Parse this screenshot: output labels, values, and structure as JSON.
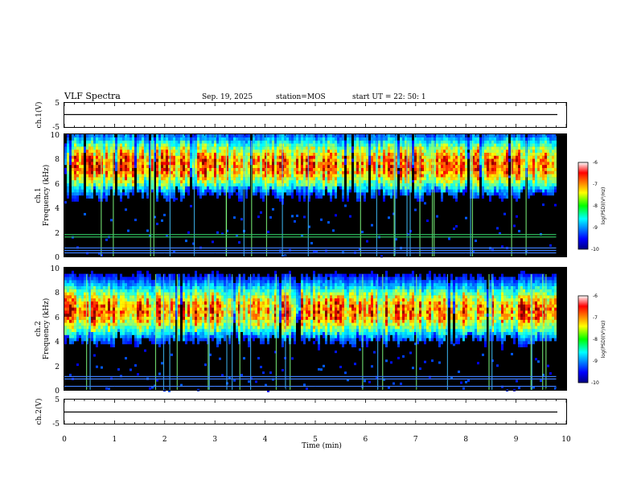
{
  "header": {
    "title": "VLF Spectra",
    "date": "Sep. 19, 2025",
    "station": "station=MOS",
    "start": "start  UT =   22: 50: 1"
  },
  "chart_data": [
    {
      "type": "line",
      "name": "ch1-waveform",
      "ylabel": "ch.1(V)",
      "ylim": [
        -5,
        5
      ],
      "yticks": [
        "5",
        "-5"
      ],
      "xlim": [
        0,
        10
      ],
      "series": [
        {
          "name": "ch.1",
          "x": [
            0,
            9.8
          ],
          "y": [
            0,
            0
          ]
        }
      ]
    },
    {
      "type": "heatmap",
      "name": "ch1-spectrogram",
      "ylabel_top": "ch.1",
      "ylabel": "Frequency (kHz)",
      "ylim": [
        0,
        10
      ],
      "yticks": [
        "0",
        "2",
        "4",
        "6",
        "8",
        "10"
      ],
      "xlim": [
        0,
        10
      ],
      "data_xmax": 9.8,
      "colorbar": {
        "label": "log(PSD)(V²/Hz)",
        "range": [
          -10,
          -6
        ],
        "ticks": [
          "-6",
          "-7",
          "-8",
          "-9",
          "-10"
        ]
      },
      "band": {
        "center_khz": 7.5,
        "lower_edge_khz": 5.0
      }
    },
    {
      "type": "heatmap",
      "name": "ch2-spectrogram",
      "ylabel_top": "ch.2",
      "ylabel": "Frequency (kHz)",
      "ylim": [
        0,
        10
      ],
      "yticks": [
        "0",
        "2",
        "4",
        "6",
        "8",
        "10"
      ],
      "xlim": [
        0,
        10
      ],
      "data_xmax": 9.8,
      "colorbar": {
        "label": "log(PSD)(V²/Hz)",
        "range": [
          -10,
          -6
        ],
        "ticks": [
          "-6",
          "-7",
          "-8",
          "-9",
          "-10"
        ]
      },
      "band": {
        "center_khz": 6.5,
        "lower_edge_khz": 4.0
      }
    },
    {
      "type": "line",
      "name": "ch2-waveform",
      "ylabel": "ch.2(V)",
      "ylim": [
        -5,
        5
      ],
      "yticks": [
        "5",
        "-5"
      ],
      "xlim": [
        0,
        10
      ],
      "series": [
        {
          "name": "ch.2",
          "x": [
            0,
            9.8
          ],
          "y": [
            0,
            0
          ]
        }
      ]
    }
  ],
  "xaxis": {
    "label": "Time (min)",
    "ticks": [
      "0",
      "1",
      "2",
      "3",
      "4",
      "5",
      "6",
      "7",
      "8",
      "9",
      "10"
    ]
  }
}
